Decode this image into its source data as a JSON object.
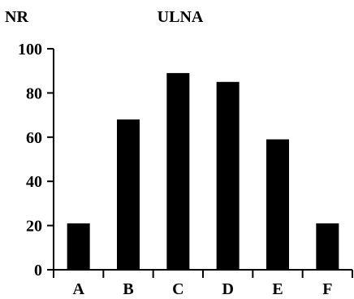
{
  "chart_data": {
    "type": "bar",
    "title": "ULNA",
    "ylabel": "NR",
    "xlabel": "",
    "categories": [
      "A",
      "B",
      "C",
      "D",
      "E",
      "F"
    ],
    "values": [
      21,
      68,
      89,
      85,
      59,
      21
    ],
    "ylim": [
      0,
      100
    ],
    "yticks": [
      "0",
      "20",
      "40",
      "60",
      "80",
      "100"
    ],
    "bar_color": "#000000",
    "grid": false,
    "legend": "none"
  }
}
